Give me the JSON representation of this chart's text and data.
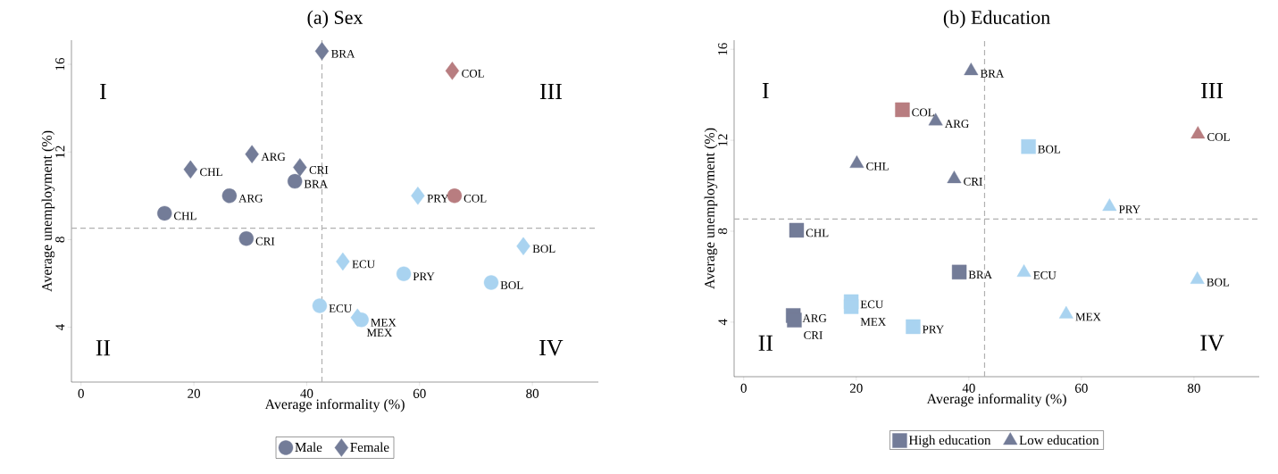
{
  "chart_data": [
    {
      "type": "scatter",
      "title": "(a) Sex",
      "xlabel": "Average informality (%)",
      "ylabel": "Average unemployment (%)",
      "xlim": [
        -1.7,
        91.7
      ],
      "ylim": [
        1.5,
        17.1
      ],
      "xticks": [
        0,
        20,
        40,
        60,
        80
      ],
      "yticks": [
        4,
        8,
        12,
        16
      ],
      "grid": false,
      "legend": "bottom",
      "series": [
        {
          "name": "Male",
          "color": "#737c98",
          "marker": "circle",
          "x": [
            14.8,
            26.3,
            29.3,
            37.9,
            66.2,
            57.2,
            72.7,
            42.3,
            49.7
          ],
          "values": [
            9.2,
            10.0,
            8.05,
            10.66,
            10.0,
            6.44,
            6.04,
            4.98,
            4.34
          ],
          "colors": [
            "#737c98",
            "#737c98",
            "#737c98",
            "#737c98",
            "#b87d80",
            "#a9d3f0",
            "#a9d3f0",
            "#a9d3f0",
            "#a9d3f0"
          ]
        },
        {
          "name": "Female",
          "color": "#737c98",
          "marker": "diamond",
          "x": [
            42.7,
            65.8,
            30.3,
            19.4,
            38.8,
            59.7,
            78.4,
            46.4,
            49.0
          ],
          "values": [
            16.6,
            15.7,
            11.9,
            11.2,
            11.3,
            10.0,
            7.7,
            7.0,
            4.44
          ],
          "colors": [
            "#737c98",
            "#b87d80",
            "#737c98",
            "#737c98",
            "#737c98",
            "#a9d3f0",
            "#a9d3f0",
            "#a9d3f0",
            "#a9d3f0"
          ]
        }
      ],
      "ref_lines": [
        {
          "axis": "x",
          "value": 42.7,
          "color": "#b0b0b0",
          "line_style": "dashed"
        },
        {
          "axis": "y",
          "value": 8.52,
          "color": "#b0b0b0",
          "line_style": "dashed"
        }
      ],
      "annotations": [
        "I",
        "III",
        "II",
        "IV",
        {
          "text": "CHL",
          "x": 14.8,
          "y": 9.2
        },
        {
          "text": "ARG",
          "x": 26.3,
          "y": 10.0
        },
        {
          "text": "CRI",
          "x": 29.3,
          "y": 8.05
        },
        {
          "text": "BRA",
          "x": 37.9,
          "y": 10.66
        },
        {
          "text": "COL",
          "x": 66.2,
          "y": 10.0
        },
        {
          "text": "PRY",
          "x": 57.2,
          "y": 6.44
        },
        {
          "text": "BOL",
          "x": 72.7,
          "y": 6.04
        },
        {
          "text": "ECU",
          "x": 42.3,
          "y": 4.98
        },
        {
          "text": "MEX",
          "x": 49.7,
          "y": 4.34
        },
        {
          "text": "BRA",
          "x": 42.7,
          "y": 16.6
        },
        {
          "text": "COL",
          "x": 65.8,
          "y": 15.7
        },
        {
          "text": "ARG",
          "x": 30.3,
          "y": 11.9
        },
        {
          "text": "CHL",
          "x": 19.4,
          "y": 11.2
        },
        {
          "text": "CRI",
          "x": 38.8,
          "y": 11.3
        },
        {
          "text": "PRY",
          "x": 59.7,
          "y": 10.0
        },
        {
          "text": "BOL",
          "x": 78.4,
          "y": 7.7
        },
        {
          "text": "ECU",
          "x": 46.4,
          "y": 7.0
        },
        {
          "text": "MEX",
          "x": 49.0,
          "y": 4.44
        }
      ]
    },
    {
      "type": "scatter",
      "title": "(b) Education",
      "xlabel": "Average informality (%)",
      "ylabel": "Average unemployment (%)",
      "xlim": [
        -1.7,
        91.6
      ],
      "ylim": [
        1.6,
        16.4
      ],
      "xticks": [
        0,
        20,
        40,
        60,
        80
      ],
      "yticks": [
        4,
        8,
        12,
        16
      ],
      "grid": false,
      "legend": "bottom",
      "series": [
        {
          "name": "High education",
          "color": "#737c98",
          "marker": "square",
          "x": [
            28.2,
            50.6,
            9.4,
            38.3,
            19.1,
            19.1,
            8.8,
            9.0,
            30.1
          ],
          "values": [
            13.34,
            11.72,
            8.04,
            6.2,
            4.9,
            4.68,
            4.29,
            4.09,
            3.8
          ],
          "colors": [
            "#b87d80",
            "#a9d3f0",
            "#737c98",
            "#737c98",
            "#a9d3f0",
            "#a9d3f0",
            "#737c98",
            "#737c98",
            "#a9d3f0"
          ]
        },
        {
          "name": "Low education",
          "color": "#737c98",
          "marker": "triangle",
          "x": [
            40.4,
            34.1,
            80.7,
            20.1,
            37.4,
            65.0,
            49.8,
            80.6,
            57.3
          ],
          "values": [
            15.05,
            12.84,
            12.26,
            10.97,
            10.3,
            9.08,
            6.18,
            5.87,
            4.35
          ],
          "colors": [
            "#737c98",
            "#737c98",
            "#b87d80",
            "#737c98",
            "#737c98",
            "#a9d3f0",
            "#a9d3f0",
            "#a9d3f0",
            "#a9d3f0"
          ]
        }
      ],
      "ref_lines": [
        {
          "axis": "x",
          "value": 42.8,
          "color": "#b0b0b0",
          "line_style": "dashed"
        },
        {
          "axis": "y",
          "value": 8.53,
          "color": "#b0b0b0",
          "line_style": "dashed"
        }
      ],
      "annotations": [
        "I",
        "III",
        "II",
        "IV",
        {
          "text": "COL",
          "x": 28.2,
          "y": 13.34
        },
        {
          "text": "BOL",
          "x": 50.6,
          "y": 11.72
        },
        {
          "text": "CHL",
          "x": 9.4,
          "y": 8.04
        },
        {
          "text": "BRA",
          "x": 38.3,
          "y": 6.2
        },
        {
          "text": "ECU",
          "x": 19.1,
          "y": 4.9
        },
        {
          "text": "MEX",
          "x": 19.1,
          "y": 4.68
        },
        {
          "text": "ARG",
          "x": 8.8,
          "y": 4.29
        },
        {
          "text": "CRI",
          "x": 9.0,
          "y": 4.09
        },
        {
          "text": "PRY",
          "x": 30.1,
          "y": 3.8
        },
        {
          "text": "BRA",
          "x": 40.4,
          "y": 15.05
        },
        {
          "text": "ARG",
          "x": 34.1,
          "y": 12.84
        },
        {
          "text": "COL",
          "x": 80.7,
          "y": 12.26
        },
        {
          "text": "CHL",
          "x": 20.1,
          "y": 10.97
        },
        {
          "text": "CRI",
          "x": 37.4,
          "y": 10.3
        },
        {
          "text": "PRY",
          "x": 65.0,
          "y": 9.08
        },
        {
          "text": "ECU",
          "x": 49.8,
          "y": 6.18
        },
        {
          "text": "BOL",
          "x": 80.6,
          "y": 5.87
        },
        {
          "text": "MEX",
          "x": 57.3,
          "y": 4.35
        }
      ]
    }
  ]
}
